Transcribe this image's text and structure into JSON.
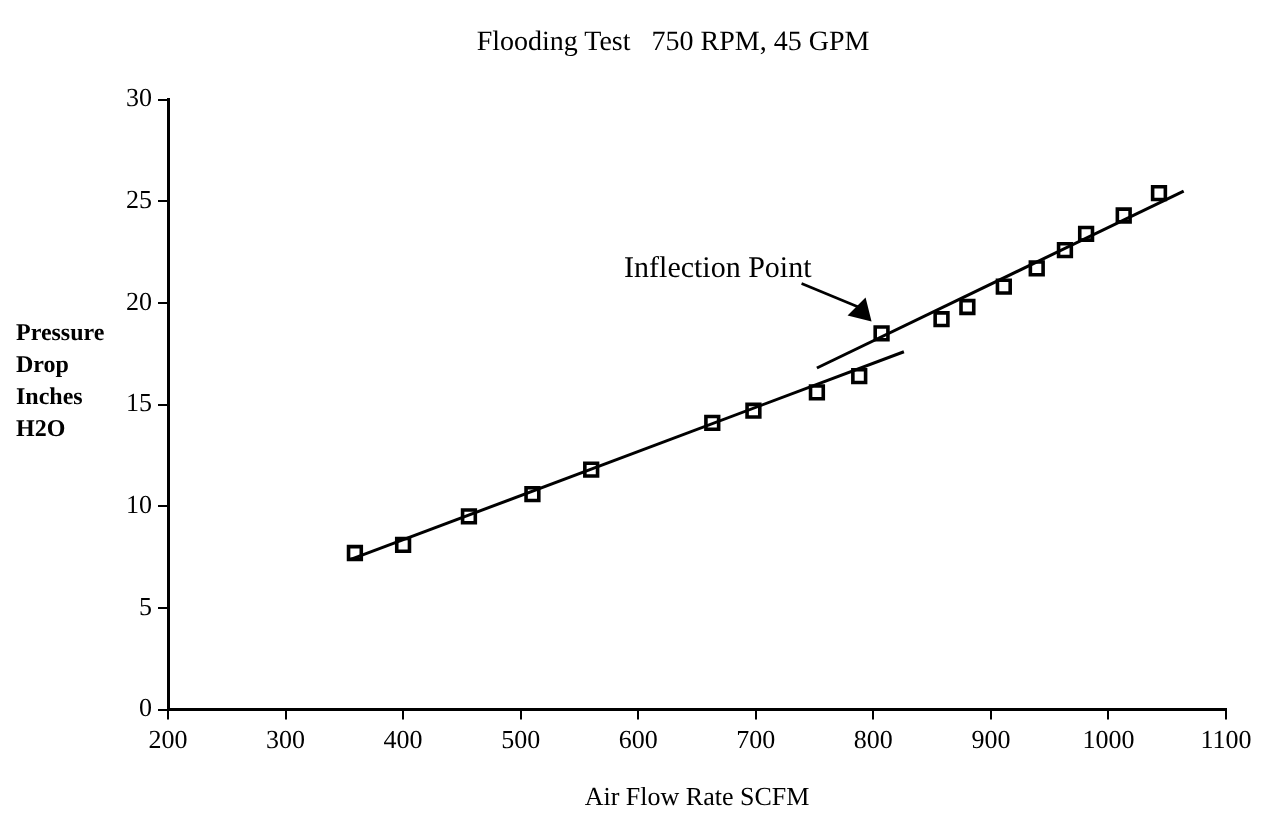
{
  "chart_data": {
    "type": "scatter",
    "title": "Flooding Test   750 RPM, 45 GPM",
    "xlabel": "Air Flow Rate SCFM",
    "ylabel": "Pressure Drop Inches H2O",
    "series": [
      {
        "marker": "square",
        "color": "#000000",
        "x": [
          359,
          400,
          456,
          510,
          560,
          663,
          698,
          752,
          788,
          807,
          858,
          880,
          911,
          939,
          963,
          981,
          1013,
          1043
        ],
        "values": [
          7.7,
          8.1,
          9.5,
          10.6,
          11.8,
          14.1,
          14.7,
          15.6,
          16.4,
          18.5,
          19.2,
          19.8,
          20.8,
          21.7,
          22.6,
          23.4,
          24.3,
          25.4
        ]
      },
      {
        "type": "line",
        "marker": "none",
        "color": "#000000",
        "x": [
          356,
          826
        ],
        "values": [
          7.4,
          17.6
        ]
      },
      {
        "type": "line",
        "marker": "none",
        "color": "#000000",
        "x": [
          752,
          1064
        ],
        "values": [
          16.8,
          25.5
        ]
      }
    ],
    "annotations": [
      {
        "text": "Inflection Point",
        "x": 807,
        "y": 18.5
      }
    ],
    "xlim": [
      200,
      1100
    ],
    "xticks": [
      200,
      300,
      400,
      500,
      600,
      700,
      800,
      900,
      1000,
      1100
    ],
    "ylim": [
      0,
      30
    ],
    "yticks": [
      0,
      5,
      10,
      15,
      20,
      25,
      30
    ],
    "grid": false,
    "legend": false,
    "line_style": "solid"
  }
}
